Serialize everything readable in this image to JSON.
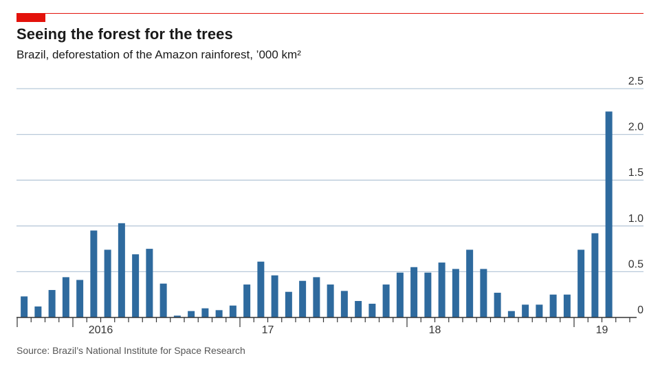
{
  "header": {
    "title": "Seeing the forest for the trees",
    "subtitle": "Brazil, deforestation of the Amazon rainforest, ’000 km²"
  },
  "footer": {
    "source": "Source: Brazil’s National Institute for Space Research"
  },
  "colors": {
    "accent": "#e3120b",
    "bar": "#2e6a9e",
    "gridline": "#b8c9d9",
    "axis": "#333333"
  },
  "chart_data": {
    "type": "bar",
    "title": "Seeing the forest for the trees",
    "subtitle": "Brazil, deforestation of the Amazon rainforest, ’000 km²",
    "xlabel": "",
    "ylabel": "’000 km²",
    "ylim": [
      0,
      2.5
    ],
    "yticks": [
      0,
      0.5,
      1.0,
      1.5,
      2.0,
      2.5
    ],
    "ytick_labels": [
      "0",
      "0.5",
      "1.0",
      "1.5",
      "2.0",
      "2.5"
    ],
    "y_axis_position": "right",
    "grid": true,
    "frequency": "monthly",
    "start": "2015-09",
    "year_labels": [
      {
        "label": "2016",
        "bar_index": 6
      },
      {
        "label": "17",
        "bar_index": 18
      },
      {
        "label": "18",
        "bar_index": 30
      },
      {
        "label": "19",
        "bar_index": 42
      }
    ],
    "year_boundaries": [
      4,
      16,
      28,
      40
    ],
    "values": [
      0.23,
      0.12,
      0.3,
      0.44,
      0.41,
      0.95,
      0.74,
      1.03,
      0.69,
      0.75,
      0.37,
      0.02,
      0.07,
      0.1,
      0.08,
      0.13,
      0.36,
      0.61,
      0.46,
      0.28,
      0.4,
      0.44,
      0.36,
      0.29,
      0.18,
      0.15,
      0.36,
      0.49,
      0.55,
      0.49,
      0.6,
      0.53,
      0.74,
      0.53,
      0.27,
      0.07,
      0.14,
      0.14,
      0.25,
      0.25,
      0.74,
      0.92,
      2.25
    ]
  }
}
